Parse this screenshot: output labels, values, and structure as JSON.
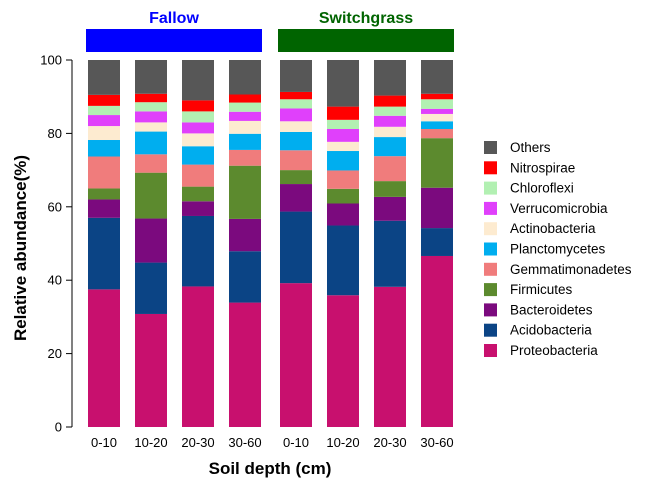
{
  "chart_data": {
    "type": "bar",
    "stacked": true,
    "xlabel": "Soil depth (cm)",
    "ylabel": "Relative abundance(%)",
    "ylim": [
      0,
      100
    ],
    "yticks": [
      0,
      20,
      40,
      60,
      80,
      100
    ],
    "groups": [
      {
        "label": "Fallow",
        "color": "#0000ff",
        "label_color": "#0000ff"
      },
      {
        "label": "Switchgrass",
        "color": "#006400",
        "label_color": "#006400"
      }
    ],
    "categories": [
      "0-10",
      "10-20",
      "20-30",
      "30-60",
      "0-10",
      "10-20",
      "20-30",
      "30-60"
    ],
    "legend_position": "right",
    "series": [
      {
        "name": "Proteobacteria",
        "color": "#c8106e",
        "values": [
          37.5,
          30.8,
          38.3,
          33.9,
          39.2,
          35.9,
          38.2,
          46.6
        ]
      },
      {
        "name": "Acidobacteria",
        "color": "#0b4485",
        "values": [
          19.5,
          14.0,
          19.2,
          14.0,
          19.5,
          19.0,
          18.0,
          7.6
        ]
      },
      {
        "name": "Bacteroidetes",
        "color": "#7b0a7e",
        "values": [
          5.0,
          12.0,
          4.0,
          8.8,
          7.5,
          6.0,
          6.5,
          11.0
        ]
      },
      {
        "name": "Firmicutes",
        "color": "#5c8a2e",
        "values": [
          3.0,
          12.5,
          4.0,
          14.5,
          3.8,
          4.0,
          4.3,
          13.5
        ]
      },
      {
        "name": "Gemmatimonadetes",
        "color": "#f07c7c",
        "values": [
          8.7,
          5.0,
          6.0,
          4.3,
          5.4,
          5.0,
          6.8,
          2.5
        ]
      },
      {
        "name": "Planctomycetes",
        "color": "#00aeef",
        "values": [
          4.5,
          6.2,
          5.0,
          4.4,
          5.0,
          5.3,
          5.2,
          2.1
        ]
      },
      {
        "name": "Actinobacteria",
        "color": "#fdebd0",
        "values": [
          3.8,
          2.5,
          3.5,
          3.5,
          2.9,
          2.5,
          2.8,
          2.0
        ]
      },
      {
        "name": "Verrucomicrobia",
        "color": "#e040fb",
        "values": [
          3.0,
          3.0,
          3.0,
          2.5,
          3.5,
          3.5,
          3.0,
          1.4
        ]
      },
      {
        "name": "Chloroflexi",
        "color": "#b2f0b2",
        "values": [
          2.5,
          2.5,
          3.0,
          2.5,
          2.5,
          2.5,
          2.5,
          2.6
        ]
      },
      {
        "name": "Nitrospirae",
        "color": "#ff0000",
        "values": [
          3.0,
          2.3,
          3.0,
          2.2,
          2.0,
          3.6,
          3.0,
          1.5
        ]
      },
      {
        "name": "Others",
        "color": "#575757",
        "values": [
          9.5,
          9.2,
          11.0,
          9.4,
          8.7,
          12.7,
          9.7,
          9.2
        ]
      }
    ]
  }
}
